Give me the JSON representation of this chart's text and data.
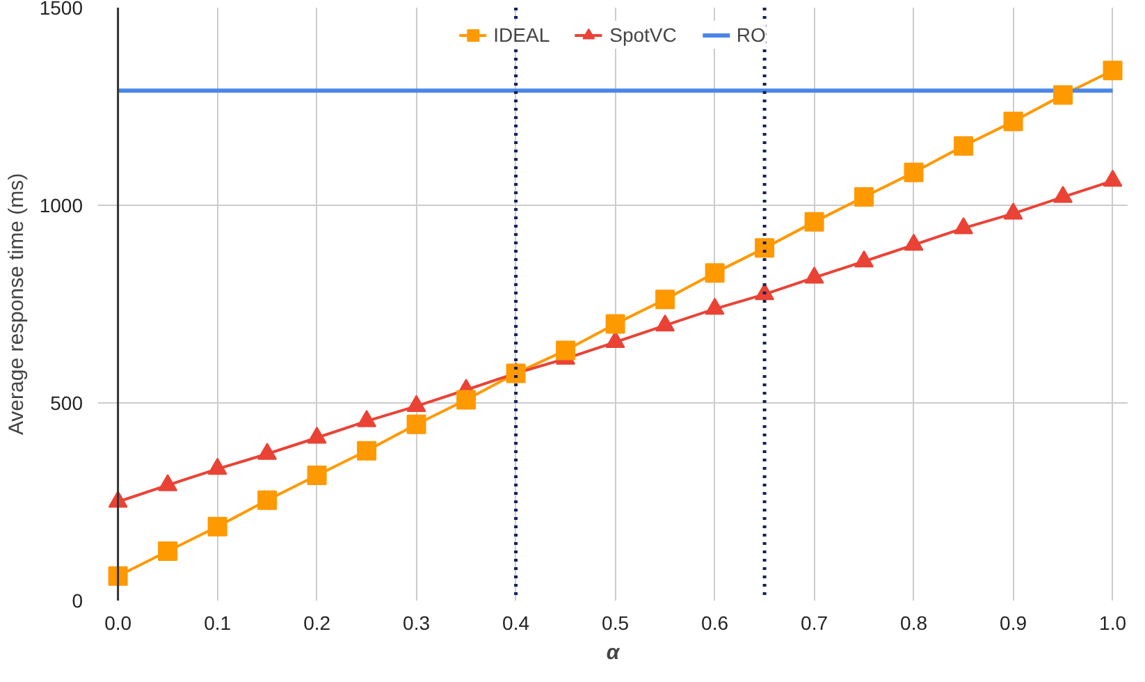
{
  "chart_data": {
    "type": "line",
    "xlabel": "α",
    "ylabel": "Average response time (ms)",
    "x": [
      0.0,
      0.05,
      0.1,
      0.15,
      0.2,
      0.25,
      0.3,
      0.35,
      0.4,
      0.45,
      0.5,
      0.55,
      0.6,
      0.65,
      0.7,
      0.75,
      0.8,
      0.85,
      0.9,
      0.95,
      1.0
    ],
    "series": [
      {
        "name": "IDEAL",
        "color": "#ff9900",
        "marker": "square",
        "values": [
          62,
          125,
          187,
          254,
          317,
          379,
          446,
          508,
          575,
          633,
          700,
          762,
          829,
          892,
          958,
          1021,
          1083,
          1150,
          1212,
          1279,
          1341
        ]
      },
      {
        "name": "SpotVC",
        "color": "#ea4335",
        "marker": "triangle",
        "values": [
          250,
          292,
          333,
          371,
          412,
          454,
          492,
          533,
          575,
          612,
          654,
          696,
          738,
          775,
          817,
          858,
          900,
          942,
          979,
          1021,
          1062
        ]
      },
      {
        "name": "RO",
        "color": "#4a86e8",
        "marker": "none",
        "x": [
          0.0,
          1.0
        ],
        "values": [
          1290,
          1290
        ]
      }
    ],
    "ref_lines": [
      {
        "axis": "x",
        "value": 0.4,
        "color": "#1a1f5c",
        "line_style": "dotted"
      },
      {
        "axis": "x",
        "value": 0.65,
        "color": "#1a1f5c",
        "line_style": "dotted"
      }
    ],
    "xlim": [
      -0.02,
      1.015
    ],
    "ylim": [
      0,
      1500
    ],
    "xticks": [
      {
        "value": 0,
        "label": "0.0"
      },
      0.1,
      0.2,
      0.3,
      0.4,
      0.5,
      0.6,
      0.7,
      0.8,
      0.9,
      {
        "value": 1,
        "label": "1.0"
      }
    ],
    "yticks": [
      0,
      500,
      1000,
      1500
    ],
    "grid": true,
    "legend": "top",
    "line_style": "solid"
  }
}
